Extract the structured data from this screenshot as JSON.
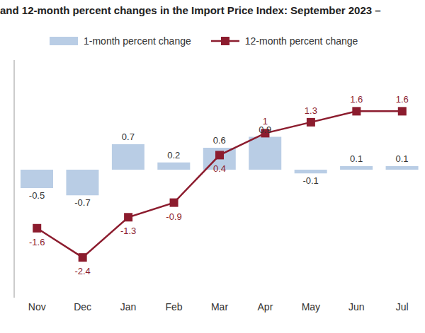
{
  "chart_data": {
    "type": "bar",
    "title": "and 12-month percent changes in the Import Price Index: September 2023 –",
    "categories": [
      "Nov",
      "Dec",
      "Jan",
      "Feb",
      "Mar",
      "Apr",
      "May",
      "Jun",
      "Jul"
    ],
    "series": [
      {
        "name": "1-month percent change",
        "type": "bar",
        "color": "#b9cde5",
        "values": [
          -0.5,
          -0.7,
          0.7,
          0.2,
          0.6,
          0.9,
          -0.1,
          0.1,
          0.1
        ]
      },
      {
        "name": "12-month percent change",
        "type": "line",
        "color": "#8c1c2e",
        "marker": "square",
        "values": [
          -1.6,
          -2.4,
          -1.3,
          -0.9,
          0.4,
          1.0,
          1.3,
          1.6,
          1.6
        ]
      }
    ],
    "ylim": [
      -3.5,
      3
    ],
    "grid": false,
    "data_labels": true,
    "tick_labels": "x"
  }
}
